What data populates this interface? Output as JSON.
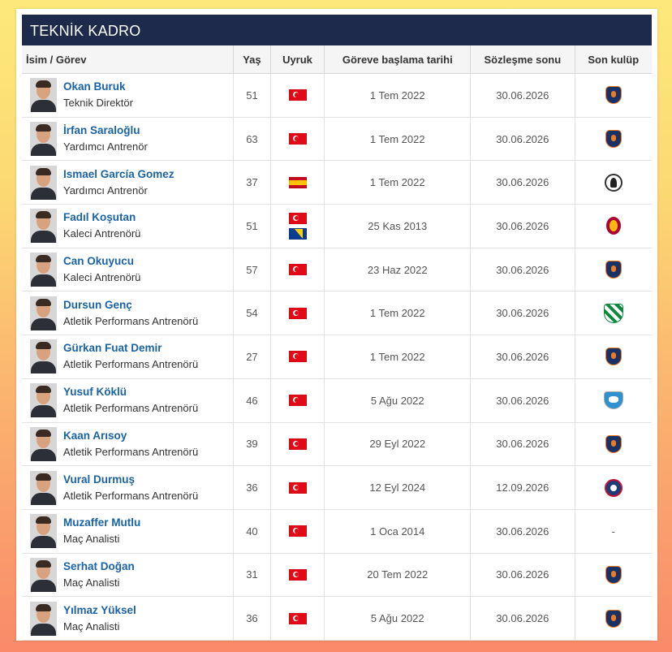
{
  "panel": {
    "title": "TEKNİK KADRO"
  },
  "columns": {
    "name": "İsim / Görev",
    "age": "Yaş",
    "nationality": "Uyruk",
    "start": "Göreve başlama tarihi",
    "contract_end": "Sözleşme sonu",
    "last_club": "Son kulüp"
  },
  "staff": [
    {
      "name": "Okan Buruk",
      "role": "Teknik Direktör",
      "age": "51",
      "flags": [
        "turkey-flag"
      ],
      "start": "1 Tem 2022",
      "end": "30.06.2026",
      "club": "basaksehir-crest"
    },
    {
      "name": "İrfan Saraloğlu",
      "role": "Yardımcı Antrenör",
      "age": "63",
      "flags": [
        "turkey-flag"
      ],
      "start": "1 Tem 2022",
      "end": "30.06.2026",
      "club": "basaksehir-crest"
    },
    {
      "name": "Ismael García Gomez",
      "role": "Yardımcı Antrenör",
      "age": "37",
      "flags": [
        "spain-flag"
      ],
      "start": "1 Tem 2022",
      "end": "30.06.2026",
      "club": "udinese-crest"
    },
    {
      "name": "Fadıl Koşutan",
      "role": "Kaleci Antrenörü",
      "age": "51",
      "flags": [
        "turkey-flag",
        "bosnia-flag"
      ],
      "start": "25 Kas 2013",
      "end": "30.06.2026",
      "club": "galatasaray-crest"
    },
    {
      "name": "Can Okuyucu",
      "role": "Kaleci Antrenörü",
      "age": "57",
      "flags": [
        "turkey-flag"
      ],
      "start": "23 Haz 2022",
      "end": "30.06.2026",
      "club": "basaksehir-crest"
    },
    {
      "name": "Dursun Genç",
      "role": "Atletik Performans Antrenörü",
      "age": "54",
      "flags": [
        "turkey-flag"
      ],
      "start": "1 Tem 2022",
      "end": "30.06.2026",
      "club": "bursaspor-crest"
    },
    {
      "name": "Gürkan Fuat Demir",
      "role": "Atletik Performans Antrenörü",
      "age": "27",
      "flags": [
        "turkey-flag"
      ],
      "start": "1 Tem 2022",
      "end": "30.06.2026",
      "club": "basaksehir-crest"
    },
    {
      "name": "Yusuf Köklü",
      "role": "Atletik Performans Antrenörü",
      "age": "46",
      "flags": [
        "turkey-flag"
      ],
      "start": "5 Ağu 2022",
      "end": "30.06.2026",
      "club": "bb-erzurumspor-crest"
    },
    {
      "name": "Kaan Arısoy",
      "role": "Atletik Performans Antrenörü",
      "age": "39",
      "flags": [
        "turkey-flag"
      ],
      "start": "29 Eyl 2022",
      "end": "30.06.2026",
      "club": "basaksehir-crest"
    },
    {
      "name": "Vural Durmuş",
      "role": "Atletik Performans Antrenörü",
      "age": "36",
      "flags": [
        "turkey-flag"
      ],
      "start": "12 Eyl 2024",
      "end": "12.09.2026",
      "club": "kasimpasa-crest"
    },
    {
      "name": "Muzaffer Mutlu",
      "role": "Maç Analisti",
      "age": "40",
      "flags": [
        "turkey-flag"
      ],
      "start": "1 Oca 2014",
      "end": "30.06.2026",
      "club": "-"
    },
    {
      "name": "Serhat Doğan",
      "role": "Maç Analisti",
      "age": "31",
      "flags": [
        "turkey-flag"
      ],
      "start": "20 Tem 2022",
      "end": "30.06.2026",
      "club": "basaksehir-crest"
    },
    {
      "name": "Yılmaz Yüksel",
      "role": "Maç Analisti",
      "age": "36",
      "flags": [
        "turkey-flag"
      ],
      "start": "5 Ağu 2022",
      "end": "30.06.2026",
      "club": "basaksehir-crest"
    }
  ],
  "colors": {
    "header_bg": "#1d2a4b",
    "link": "#1a63a5",
    "background_top": "#fde97a",
    "background_bottom": "#f98a6a"
  }
}
